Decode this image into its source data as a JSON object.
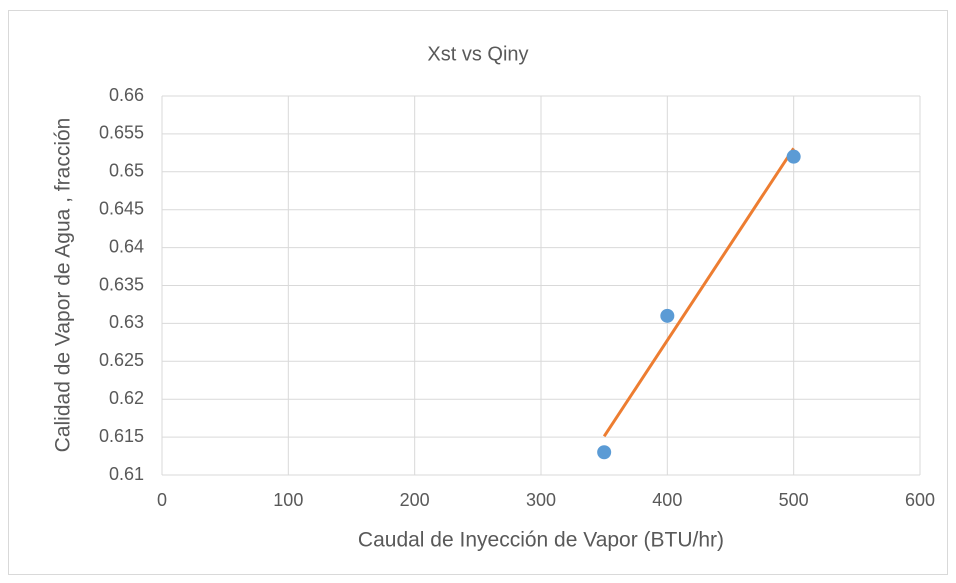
{
  "chart_data": {
    "type": "scatter",
    "title": "Xst vs Qiny",
    "x_label": "Caudal  de Inyección de Vapor (BTU/hr)",
    "y_label": "Calidad de Vapor de Agua , fracción",
    "series": [
      {
        "color": "#5b9bd5",
        "x": [
          350,
          400,
          500
        ],
        "values": [
          0.613,
          0.631,
          0.652
        ]
      }
    ],
    "trendline": {
      "color": "#ed7d31",
      "x": [
        350,
        500
      ],
      "values": [
        0.6151,
        0.6531
      ]
    },
    "xlim": [
      0,
      600
    ],
    "xticks": [
      0,
      100,
      200,
      300,
      400,
      500,
      600
    ],
    "ylim": [
      0.61,
      0.66
    ],
    "yticks": [
      0.61,
      0.615,
      0.62,
      0.625,
      0.63,
      0.635,
      0.64,
      0.645,
      0.65,
      0.655,
      0.66
    ],
    "grid": true
  }
}
